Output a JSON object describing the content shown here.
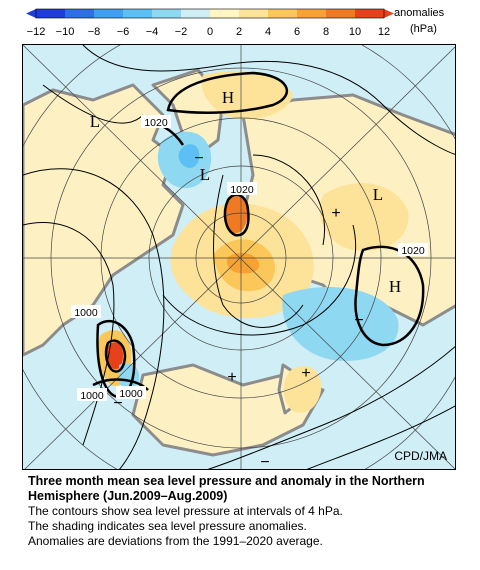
{
  "colorbar": {
    "ticks": [
      "−12",
      "−10",
      "−8",
      "−6",
      "−4",
      "−2",
      "0",
      "2",
      "4",
      "6",
      "8",
      "10",
      "12"
    ],
    "unit_line1": "anomalies",
    "unit_line2": "(hPa)",
    "colors": [
      "#1e3ddb",
      "#2f6fe6",
      "#3f9ff0",
      "#5cc0f5",
      "#8fd8f2",
      "#cfeef5",
      "#fff6c4",
      "#fde39a",
      "#fbc75a",
      "#f7a233",
      "#f07a22",
      "#e6411b"
    ]
  },
  "map": {
    "pressure_labels": [
      "1020",
      "1020",
      "1020",
      "1000",
      "1000",
      "1000"
    ],
    "center_labels": [
      "H",
      "H",
      "L",
      "L",
      "L"
    ],
    "anomaly_signs": [
      "+",
      "+",
      "+",
      "−",
      "−",
      "−",
      "−"
    ],
    "credit": "CPD/JMA",
    "land_color": "#fdf1c4",
    "ocean_color": "#cfeef5",
    "coast_color": "#8c8c8c"
  },
  "caption": {
    "title": "Three month mean sea level pressure and anomaly in the Northern Hemisphere (Jun.2009–Aug.2009)",
    "line1": "The contours show sea level pressure at intervals of 4 hPa.",
    "line2": "The shading indicates sea level pressure anomalies.",
    "line3": "Anomalies are deviations from the 1991–2020 average."
  }
}
